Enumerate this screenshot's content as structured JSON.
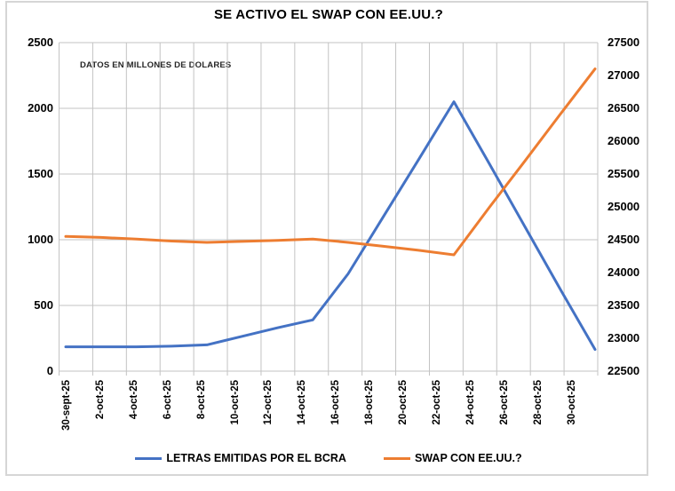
{
  "title": "SE ACTIVO EL SWAP CON EE.UU.?",
  "annotation": "DATOS EN MILLONES DE DOLARES",
  "colors": {
    "letras_line": "#4472C4",
    "swap_line": "#ED7D31",
    "gridline": "#c3c3c3",
    "frame_border": "#d6d6d6",
    "text": "#000000"
  },
  "chart_data": {
    "type": "line",
    "title": "SE ACTIVO EL SWAP CON EE.UU.?",
    "annotation": "DATOS EN MILLONES DE DOLARES",
    "categories": [
      "30-sept-25",
      "2-oct-25",
      "4-oct-25",
      "6-oct-25",
      "8-oct-25",
      "10-oct-25",
      "12-oct-25",
      "14-oct-25",
      "16-oct-25",
      "18-oct-25",
      "20-oct-25",
      "22-oct-25",
      "24-oct-25",
      "26-oct-25",
      "28-oct-25",
      "30-oct-25"
    ],
    "series": [
      {
        "name": "LETRAS EMITIDAS POR EL BCRA",
        "axis": "left",
        "color": "#4472C4",
        "values": [
          185,
          185,
          185,
          190,
          200,
          265,
          330,
          390,
          740,
          1175,
          1610,
          2050,
          1580,
          1105,
          630,
          165
        ]
      },
      {
        "name": "SWAP CON EE.UU.?",
        "axis": "right",
        "color": "#ED7D31",
        "values": [
          24550,
          24535,
          24510,
          24480,
          24460,
          24475,
          24490,
          24510,
          24460,
          24400,
          24340,
          24270,
          24990,
          25690,
          26400,
          27100
        ]
      }
    ],
    "left_axis": {
      "min": 0,
      "max": 2500,
      "ticks": [
        0,
        500,
        1000,
        1500,
        2000,
        2500
      ]
    },
    "right_axis": {
      "min": 22500,
      "max": 27500,
      "ticks": [
        22500,
        23000,
        23500,
        24000,
        24500,
        25000,
        25500,
        26000,
        26500,
        27000,
        27500
      ]
    },
    "grid": true,
    "legend_position": "bottom"
  }
}
